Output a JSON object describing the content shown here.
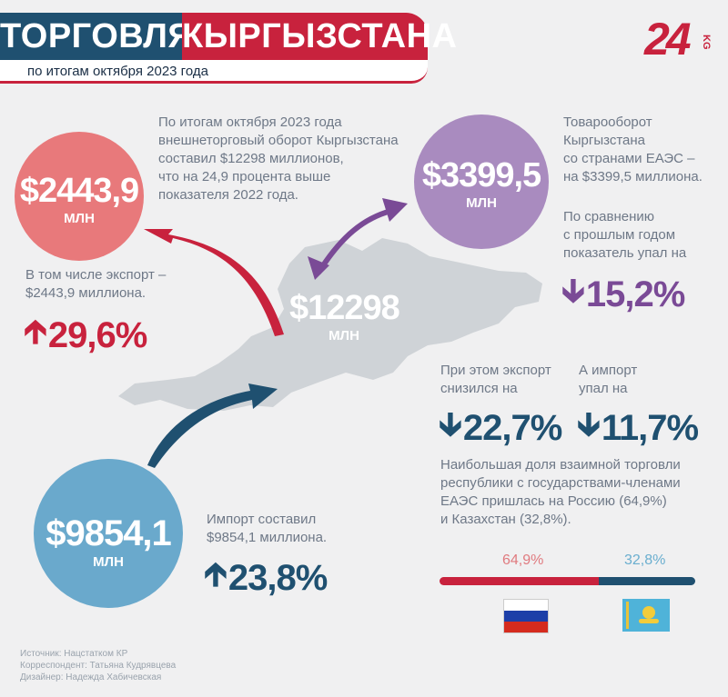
{
  "header": {
    "title_part1": "ТОРГОВЛЯ",
    "title_part2": "КЫРГЫЗСТАНА",
    "subtitle": "по итогам октября 2023 года",
    "logo_text": "24",
    "logo_suffix": "KG"
  },
  "export_circle": {
    "value": "$2443,9",
    "unit": "МЛН"
  },
  "eaeu_circle": {
    "value": "$3399,5",
    "unit": "МЛН"
  },
  "import_circle": {
    "value": "$9854,1",
    "unit": "МЛН"
  },
  "total": {
    "value": "$12298",
    "unit": "МЛН"
  },
  "texts": {
    "intro": [
      "По итогам октября 2023 года",
      "внешнеторговый оборот Кыргызстана",
      "составил $12298 миллионов,",
      "что на 24,9 процента выше",
      "показателя 2022 года."
    ],
    "eaeu": [
      "Товарооборот",
      "Кыргызстана",
      "со странами ЕАЭС –",
      "на $3399,5 миллиона."
    ],
    "compare": [
      "По сравнению",
      "с прошлым годом",
      "показатель упал на"
    ],
    "export_note": [
      "В том числе экспорт –",
      "$2443,9 миллиона."
    ],
    "export_drop": [
      "При этом экспорт",
      "снизился на"
    ],
    "import_drop": [
      "А импорт",
      "упал на"
    ],
    "share": [
      "Наибольшая доля взаимной торговли",
      "республики с государствами-членами",
      "ЕАЭС пришлась на Россию (64,9%)",
      "и Казахстан (32,8%)."
    ],
    "import_note": [
      "Импорт составил",
      "$9854,1 миллиона."
    ]
  },
  "stats": {
    "export_growth": "29,6%",
    "eaeu_decline": "15,2%",
    "export_decline": "22,7%",
    "import_decline": "11,7%",
    "import_growth": "23,8%"
  },
  "shares": {
    "russia": "64,9%",
    "kazakhstan": "32,8%"
  },
  "colors": {
    "navy": "#1f5070",
    "red": "#c8223d",
    "pink": "#e8797b",
    "purple": "#a98bbf",
    "blue": "#6aa9cc",
    "map": "#cfd3d7"
  },
  "footer": [
    "Источник: Нацстатком КР",
    "Корреспондент: Татьяна Кудрявцева",
    "Дизайнер: Надежда Хабичевская"
  ]
}
